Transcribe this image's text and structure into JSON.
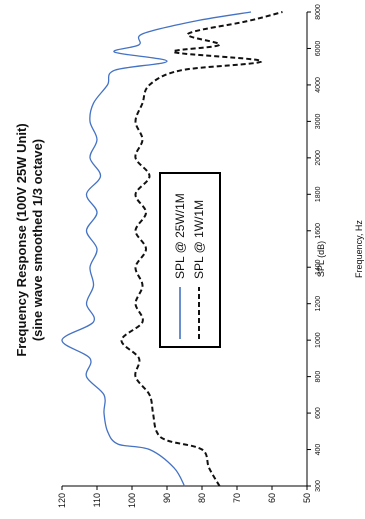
{
  "chart_data": {
    "type": "line",
    "title": "Frequency Response (100V 25W Unit)",
    "subtitle": "(sine wave smoothed 1/3 octave)",
    "xlabel": "Frequency, Hz",
    "ylabel": "SPL (dB)",
    "xlim": [
      300,
      8000
    ],
    "ylim": [
      50,
      120
    ],
    "x_ticks": [
      300,
      400,
      600,
      800,
      1000,
      1200,
      1400,
      1600,
      1800,
      2000,
      3000,
      4000,
      6000,
      8000
    ],
    "x_tick_labels": [
      "300",
      "400",
      "600",
      "800",
      "1000",
      "1200",
      "1400",
      "1600",
      "1800",
      "2000",
      "3000",
      "4000",
      "6000",
      "8000"
    ],
    "y_ticks": [
      50,
      60,
      70,
      80,
      90,
      100,
      110,
      120
    ],
    "y_tick_labels": [
      "50",
      "60",
      "70",
      "80",
      "90",
      "100",
      "110",
      "120"
    ],
    "grid": false,
    "legend_position": "center",
    "series": [
      {
        "name": "SPL @ 25W/1M",
        "color": "#4472c4",
        "dash": "solid",
        "points": [
          [
            300,
            85
          ],
          [
            350,
            88
          ],
          [
            400,
            95
          ],
          [
            430,
            104
          ],
          [
            500,
            107
          ],
          [
            600,
            108
          ],
          [
            700,
            108
          ],
          [
            800,
            113
          ],
          [
            900,
            112
          ],
          [
            1000,
            120
          ],
          [
            1100,
            111
          ],
          [
            1200,
            113
          ],
          [
            1300,
            111
          ],
          [
            1400,
            112
          ],
          [
            1500,
            110
          ],
          [
            1600,
            113
          ],
          [
            1700,
            110
          ],
          [
            1800,
            113
          ],
          [
            1900,
            109
          ],
          [
            2000,
            112
          ],
          [
            2500,
            110
          ],
          [
            3000,
            112
          ],
          [
            3500,
            111
          ],
          [
            4000,
            107
          ],
          [
            4800,
            105
          ],
          [
            5300,
            90
          ],
          [
            5800,
            105
          ],
          [
            6200,
            98
          ],
          [
            6800,
            97
          ],
          [
            7500,
            82
          ],
          [
            8000,
            66
          ]
        ]
      },
      {
        "name": "SPL @ 1W/1M",
        "color": "#111111",
        "dash": "dashed",
        "points": [
          [
            300,
            75
          ],
          [
            350,
            78
          ],
          [
            400,
            80
          ],
          [
            450,
            90
          ],
          [
            500,
            93
          ],
          [
            600,
            94
          ],
          [
            700,
            95
          ],
          [
            800,
            99
          ],
          [
            900,
            98
          ],
          [
            1000,
            103
          ],
          [
            1100,
            97
          ],
          [
            1200,
            99
          ],
          [
            1300,
            97
          ],
          [
            1400,
            99
          ],
          [
            1500,
            96
          ],
          [
            1600,
            99
          ],
          [
            1700,
            96
          ],
          [
            1800,
            99
          ],
          [
            1900,
            95
          ],
          [
            2000,
            99
          ],
          [
            2500,
            97
          ],
          [
            3000,
            99
          ],
          [
            3500,
            97
          ],
          [
            4000,
            95
          ],
          [
            4800,
            86
          ],
          [
            5300,
            63
          ],
          [
            5800,
            88
          ],
          [
            6200,
            75
          ],
          [
            6800,
            84
          ],
          [
            7500,
            67
          ],
          [
            8000,
            57
          ]
        ]
      }
    ]
  }
}
